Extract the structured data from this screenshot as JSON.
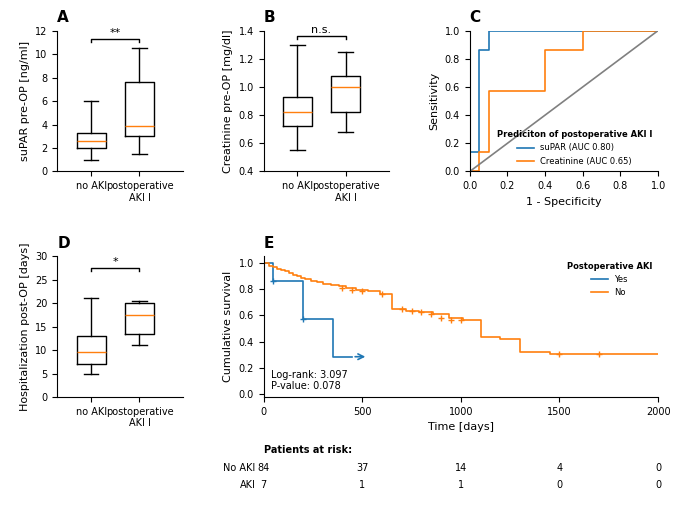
{
  "chart_data": [
    {
      "type": "box",
      "title": "A",
      "ylabel": "suPAR pre-OP [ng/ml]",
      "categories": [
        "no AKI",
        "postoperative\nAKI I"
      ],
      "boxes": [
        {
          "whislo": 1.0,
          "q1": 2.0,
          "med": 2.6,
          "q3": 3.3,
          "whishi": 6.0
        },
        {
          "whislo": 1.5,
          "q1": 3.0,
          "med": 3.9,
          "q3": 7.6,
          "whishi": 10.5
        }
      ],
      "annotations": [
        {
          "text": "**",
          "y": 11.3
        }
      ],
      "ylim": [
        0,
        12
      ],
      "yticks": [
        0,
        2,
        4,
        6,
        8,
        10,
        12
      ]
    },
    {
      "type": "box",
      "title": "B",
      "ylabel": "Creatinine pre-OP [mg/dl]",
      "categories": [
        "no AKI",
        "postoperative\nAKI I"
      ],
      "boxes": [
        {
          "whislo": 0.55,
          "q1": 0.72,
          "med": 0.82,
          "q3": 0.93,
          "whishi": 1.3
        },
        {
          "whislo": 0.68,
          "q1": 0.82,
          "med": 1.0,
          "q3": 1.08,
          "whishi": 1.25
        }
      ],
      "annotations": [
        {
          "text": "n.s.",
          "y": 1.36
        }
      ],
      "ylim": [
        0.4,
        1.4
      ],
      "yticks": [
        0.4,
        0.6,
        0.8,
        {
          "value": 1,
          "label": "1.0"
        },
        1.2,
        1.4
      ]
    },
    {
      "type": "line",
      "title": "C",
      "xlabel": "1 - Specificity",
      "ylabel": "Sensitivity",
      "legend_title": "Prediciton of postoperative AKI I",
      "legend": "lower right",
      "series": [
        {
          "name": "suPAR (AUC 0.80)",
          "type": "step",
          "x": [
            0.0,
            0.0,
            0.05,
            0.05,
            0.05,
            0.1,
            0.1,
            0.1,
            0.15,
            0.15,
            0.6,
            0.6,
            1.0
          ],
          "values": [
            0.0,
            0.14,
            0.14,
            0.43,
            0.86,
            0.86,
            0.86,
            1.0,
            1.0,
            1.0,
            1.0,
            1.0,
            1.0
          ]
        },
        {
          "name": "Creatinine (AUC 0.65)",
          "type": "step",
          "x": [
            0.0,
            0.05,
            0.05,
            0.1,
            0.1,
            0.4,
            0.4,
            0.6,
            0.6,
            0.9,
            0.9,
            1.0
          ],
          "values": [
            0.0,
            0.0,
            0.14,
            0.14,
            0.57,
            0.57,
            0.86,
            0.86,
            1.0,
            1.0,
            1.0,
            1.0
          ]
        },
        {
          "type": "line",
          "color": "gray",
          "x": [
            0,
            1
          ],
          "values": [
            0,
            1
          ]
        }
      ],
      "xlim": [
        0,
        1
      ],
      "ylim": [
        0,
        1
      ],
      "xticks": [
        {
          "value": 0,
          "label": "0.0"
        },
        0.2,
        0.4,
        0.6,
        0.8,
        {
          "value": 1,
          "label": "1.0"
        }
      ],
      "yticks": [
        {
          "value": 0,
          "label": "0.0"
        },
        0.2,
        0.4,
        0.6,
        0.8,
        {
          "value": 1,
          "label": "1.0"
        }
      ]
    },
    {
      "type": "box",
      "title": "D",
      "ylabel": "Hospitalization post-OP [days]",
      "categories": [
        "no AKI",
        "postoperative\nAKI I"
      ],
      "boxes": [
        {
          "whislo": 5.0,
          "q1": 7.0,
          "med": 9.5,
          "q3": 13.0,
          "whishi": 21.0
        },
        {
          "whislo": 11.0,
          "q1": 13.5,
          "med": 17.5,
          "q3": 20.0,
          "whishi": 20.5
        }
      ],
      "annotations": [
        {
          "text": "*",
          "y": 27.5
        }
      ],
      "ylim": [
        0,
        30
      ],
      "yticks": [
        0,
        5,
        10,
        15,
        20,
        25,
        30
      ]
    },
    {
      "type": "step",
      "title": "E",
      "xlabel": "Time [days]",
      "ylabel": "Cumulative survival",
      "legend_title": "Postoperative AKI",
      "legend": "upper right",
      "series": [
        {
          "name": "Yes",
          "x": [
            0,
            50,
            50,
            200,
            200,
            350,
            350,
            450,
            450
          ],
          "values": [
            1.0,
            1.0,
            0.857,
            0.857,
            0.571,
            0.571,
            0.286,
            0.286,
            0.286
          ],
          "censored": {
            "x": [
              50,
              200
            ],
            "values": [
              0.857,
              0.571
            ]
          },
          "arrow_to": 530
        },
        {
          "name": "No",
          "x": [
            0,
            30,
            50,
            70,
            90,
            110,
            130,
            150,
            170,
            190,
            210,
            240,
            270,
            300,
            340,
            380,
            420,
            470,
            530,
            590,
            650,
            720,
            790,
            860,
            940,
            1010,
            1100,
            1200,
            1300,
            1450,
            1600,
            1750,
            2000
          ],
          "values": [
            1.0,
            0.978,
            0.967,
            0.955,
            0.944,
            0.933,
            0.921,
            0.91,
            0.898,
            0.886,
            0.875,
            0.864,
            0.852,
            0.841,
            0.83,
            0.819,
            0.807,
            0.795,
            0.784,
            0.761,
            0.648,
            0.636,
            0.625,
            0.614,
            0.58,
            0.568,
            0.432,
            0.42,
            0.318,
            0.307,
            0.307,
            0.307,
            0.307
          ],
          "censored": {
            "x": [
              400,
              450,
              500,
              600,
              700,
              750,
              800,
              850,
              900,
              950,
              1000,
              1500,
              1700
            ],
            "values": [
              0.807,
              0.795,
              0.784,
              0.761,
              0.648,
              0.636,
              0.625,
              0.614,
              0.58,
              0.568,
              0.568,
              0.307,
              0.307
            ]
          }
        }
      ],
      "annotations": [
        {
          "text": "Log-rank: 3.097\nP-value: 0.078"
        }
      ],
      "table": {
        "title": "Patients at risk:",
        "x": [
          0,
          500,
          1000,
          1500,
          2000
        ],
        "rows": [
          {
            "name": "No AKI",
            "values": [
              84,
              37,
              14,
              4,
              0
            ]
          },
          {
            "name": "AKI",
            "values": [
              7,
              1,
              1,
              0,
              0
            ]
          }
        ]
      },
      "xlim": [
        0,
        2000
      ],
      "ylim": [
        -0.02,
        1.05
      ],
      "xticks": [
        0,
        500,
        1000,
        1500,
        2000
      ],
      "yticks": [
        {
          "value": 0,
          "label": "0.0"
        },
        0.2,
        0.4,
        0.6,
        0.8,
        {
          "value": 1,
          "label": "1.0"
        }
      ]
    }
  ]
}
